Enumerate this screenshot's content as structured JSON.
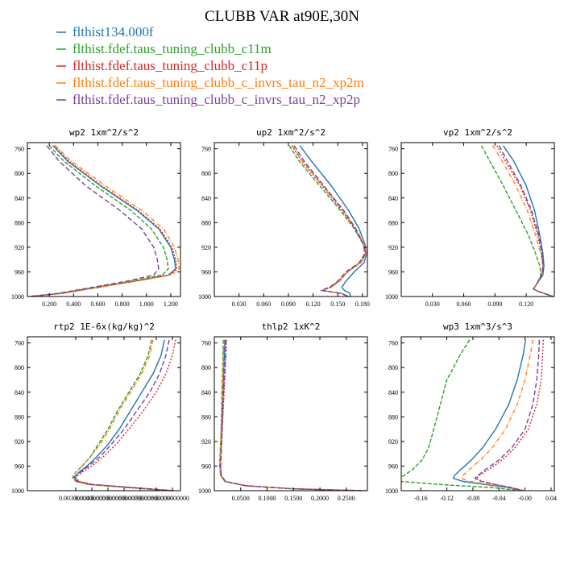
{
  "figure": {
    "title": "CLUBB VAR at90E,30N",
    "legend": [
      {
        "label": "flthist134.000f",
        "color": "#1f77b4"
      },
      {
        "label": "flthist.fdef.taus_tuning_clubb_c11m",
        "color": "#2ca02c"
      },
      {
        "label": "flthist.fdef.taus_tuning_clubb_c11p",
        "color": "#d62728"
      },
      {
        "label": "flthist.fdef.taus_tuning_clubb_c_invrs_tau_n2_xp2m",
        "color": "#ff7f0e"
      },
      {
        "label": "flthist.fdef.taus_tuning_clubb_c_invrs_tau_n2_xp2p",
        "color": "#7b3f9e"
      }
    ]
  },
  "chart_data": [
    {
      "type": "line",
      "title": "wp2  1xm^2/s^2",
      "xlim": [
        0.02,
        1.28
      ],
      "ylim": [
        1000,
        750
      ],
      "yticks": [
        760,
        800,
        840,
        880,
        920,
        960,
        1000
      ],
      "xticks": [
        0.2,
        0.4,
        0.6,
        0.8,
        1.0,
        1.2
      ],
      "xtick_labels": [
        "0.200",
        "0.400",
        "0.600",
        "0.800",
        "1.000",
        "1.200"
      ],
      "y": [
        755,
        780,
        820,
        860,
        890,
        920,
        940,
        955,
        965,
        975,
        985,
        995,
        1000
      ],
      "series": [
        {
          "name": "flthist134.000f",
          "color": "#1f77b4",
          "dash": "",
          "values": [
            0.23,
            0.35,
            0.62,
            0.92,
            1.1,
            1.2,
            1.23,
            1.24,
            1.18,
            0.9,
            0.6,
            0.3,
            0.04
          ]
        },
        {
          "name": "flthist.fdef.taus_tuning_clubb_c11m",
          "color": "#2ca02c",
          "dash": "5,2",
          "values": [
            0.2,
            0.32,
            0.58,
            0.87,
            1.04,
            1.14,
            1.17,
            1.18,
            1.13,
            0.88,
            0.58,
            0.28,
            0.04
          ]
        },
        {
          "name": "flthist.fdef.taus_tuning_clubb_c11p",
          "color": "#d62728",
          "dash": "2,2",
          "values": [
            0.24,
            0.36,
            0.63,
            0.93,
            1.11,
            1.21,
            1.24,
            1.25,
            1.19,
            0.91,
            0.61,
            0.3,
            0.04
          ]
        },
        {
          "name": "flthist.fdef.taus_tuning_clubb_c_invrs_tau_n2_xp2m",
          "color": "#ff7f0e",
          "dash": "5,2,1,2",
          "values": [
            0.25,
            0.38,
            0.66,
            0.96,
            1.14,
            1.23,
            1.26,
            1.27,
            1.2,
            0.92,
            0.61,
            0.3,
            0.04
          ]
        },
        {
          "name": "flthist.fdef.taus_tuning_clubb_c_invrs_tau_n2_xp2p",
          "color": "#7b3f9e",
          "dash": "6,3",
          "values": [
            0.18,
            0.28,
            0.5,
            0.78,
            0.96,
            1.06,
            1.09,
            1.1,
            1.06,
            0.84,
            0.56,
            0.27,
            0.04
          ]
        }
      ]
    },
    {
      "type": "line",
      "title": "up2  1xm^2/s^2",
      "xlim": [
        0.0,
        0.186
      ],
      "ylim": [
        1000,
        750
      ],
      "yticks": [
        760,
        800,
        840,
        880,
        920,
        960,
        1000
      ],
      "xticks": [
        0.03,
        0.06,
        0.09,
        0.12,
        0.15,
        0.18
      ],
      "xtick_labels": [
        "0.030",
        "0.060",
        "0.090",
        "0.120",
        "0.150",
        "0.180"
      ],
      "y": [
        755,
        780,
        820,
        860,
        890,
        915,
        930,
        945,
        960,
        975,
        985,
        990,
        995,
        1000
      ],
      "series": [
        {
          "name": "flthist134.000f",
          "color": "#1f77b4",
          "dash": "",
          "values": [
            0.104,
            0.118,
            0.142,
            0.163,
            0.176,
            0.183,
            0.185,
            0.182,
            0.17,
            0.16,
            0.155,
            0.158,
            0.165,
            0.165
          ]
        },
        {
          "name": "flthist.fdef.taus_tuning_clubb_c11m",
          "color": "#2ca02c",
          "dash": "5,2",
          "values": [
            0.091,
            0.103,
            0.128,
            0.153,
            0.17,
            0.181,
            0.184,
            0.178,
            0.162,
            0.152,
            0.142,
            0.131,
            0.155,
            0.163
          ]
        },
        {
          "name": "flthist.fdef.taus_tuning_clubb_c11p",
          "color": "#d62728",
          "dash": "2,2",
          "values": [
            0.094,
            0.106,
            0.131,
            0.155,
            0.171,
            0.181,
            0.184,
            0.177,
            0.161,
            0.151,
            0.141,
            0.13,
            0.154,
            0.163
          ]
        },
        {
          "name": "flthist.fdef.taus_tuning_clubb_c_invrs_tau_n2_xp2m",
          "color": "#ff7f0e",
          "dash": "5,2,1,2",
          "values": [
            0.095,
            0.107,
            0.132,
            0.156,
            0.172,
            0.182,
            0.185,
            0.178,
            0.162,
            0.152,
            0.142,
            0.131,
            0.155,
            0.163
          ]
        },
        {
          "name": "flthist.fdef.taus_tuning_clubb_c_invrs_tau_n2_xp2p",
          "color": "#7b3f9e",
          "dash": "6,3",
          "values": [
            0.097,
            0.109,
            0.133,
            0.157,
            0.172,
            0.181,
            0.183,
            0.176,
            0.16,
            0.15,
            0.14,
            0.13,
            0.154,
            0.163
          ]
        }
      ]
    },
    {
      "type": "line",
      "title": "vp2  1xm^2/s^2",
      "xlim": [
        0.0,
        0.147
      ],
      "ylim": [
        1000,
        750
      ],
      "yticks": [
        760,
        800,
        840,
        880,
        920,
        960,
        1000
      ],
      "xticks": [
        0.03,
        0.06,
        0.09,
        0.12
      ],
      "xtick_labels": [
        "0.030",
        "0.060",
        "0.090",
        "0.120"
      ],
      "y": [
        755,
        780,
        820,
        860,
        900,
        930,
        950,
        965,
        980,
        988,
        992,
        1000
      ],
      "series": [
        {
          "name": "flthist134.000f",
          "color": "#1f77b4",
          "dash": "",
          "values": [
            0.098,
            0.108,
            0.12,
            0.128,
            0.133,
            0.136,
            0.137,
            0.136,
            0.13,
            0.127,
            0.132,
            0.146
          ]
        },
        {
          "name": "flthist.fdef.taus_tuning_clubb_c11m",
          "color": "#2ca02c",
          "dash": "5,2",
          "values": [
            0.077,
            0.085,
            0.098,
            0.11,
            0.122,
            0.129,
            0.133,
            0.134,
            0.13,
            0.127,
            0.132,
            0.146
          ]
        },
        {
          "name": "flthist.fdef.taus_tuning_clubb_c11p",
          "color": "#d62728",
          "dash": "2,2",
          "values": [
            0.092,
            0.1,
            0.114,
            0.124,
            0.131,
            0.135,
            0.136,
            0.135,
            0.13,
            0.127,
            0.132,
            0.146
          ]
        },
        {
          "name": "flthist.fdef.taus_tuning_clubb_c_invrs_tau_n2_xp2m",
          "color": "#ff7f0e",
          "dash": "5,2,1,2",
          "values": [
            0.088,
            0.097,
            0.11,
            0.121,
            0.129,
            0.134,
            0.136,
            0.135,
            0.13,
            0.127,
            0.132,
            0.146
          ]
        },
        {
          "name": "flthist.fdef.taus_tuning_clubb_c_invrs_tau_n2_xp2p",
          "color": "#7b3f9e",
          "dash": "6,3",
          "values": [
            0.094,
            0.102,
            0.115,
            0.125,
            0.132,
            0.135,
            0.136,
            0.135,
            0.13,
            0.127,
            0.132,
            0.146
          ]
        }
      ]
    },
    {
      "type": "line",
      "title": "rtp2  1E-6x(kg/kg)^2",
      "xlim": [
        0.0,
        0.0095
      ],
      "ylim": [
        1000,
        750
      ],
      "yticks": [
        760,
        800,
        840,
        880,
        920,
        960,
        1000
      ],
      "xticks": [
        0.003,
        0.004,
        0.005,
        0.006,
        0.007,
        0.008,
        0.009
      ],
      "xtick_labels": [
        "0.003000000",
        "0.004000000",
        "0.005000000",
        "0.006000000",
        "0.007000000",
        "0.008000000",
        "0.009000000"
      ],
      "y": [
        755,
        780,
        810,
        840,
        870,
        900,
        925,
        945,
        960,
        970,
        978,
        985,
        990,
        995,
        1000
      ],
      "series": [
        {
          "name": "flthist134.000f",
          "color": "#1f77b4",
          "dash": "",
          "values": [
            0.0085,
            0.0083,
            0.0078,
            0.0071,
            0.0064,
            0.0057,
            0.005,
            0.0043,
            0.0037,
            0.0032,
            0.0029,
            0.0031,
            0.004,
            0.0065,
            0.009
          ]
        },
        {
          "name": "flthist.fdef.taus_tuning_clubb_c11m",
          "color": "#2ca02c",
          "dash": "5,2",
          "values": [
            0.0077,
            0.0075,
            0.007,
            0.0063,
            0.0056,
            0.005,
            0.0044,
            0.0039,
            0.0034,
            0.003,
            0.0028,
            0.003,
            0.0038,
            0.0063,
            0.0088
          ]
        },
        {
          "name": "flthist.fdef.taus_tuning_clubb_c11p",
          "color": "#d62728",
          "dash": "2,2",
          "values": [
            0.0092,
            0.009,
            0.0086,
            0.008,
            0.0072,
            0.0063,
            0.0055,
            0.0047,
            0.004,
            0.0034,
            0.003,
            0.0032,
            0.0041,
            0.0066,
            0.0091
          ]
        },
        {
          "name": "flthist.fdef.taus_tuning_clubb_c_invrs_tau_n2_xp2m",
          "color": "#ff7f0e",
          "dash": "5,2,1,2",
          "values": [
            0.0078,
            0.0076,
            0.0071,
            0.0064,
            0.0057,
            0.0051,
            0.0045,
            0.0039,
            0.0034,
            0.003,
            0.0028,
            0.003,
            0.0038,
            0.0063,
            0.0088
          ]
        },
        {
          "name": "flthist.fdef.taus_tuning_clubb_c_invrs_tau_n2_xp2p",
          "color": "#7b3f9e",
          "dash": "6,3",
          "values": [
            0.0088,
            0.0086,
            0.0082,
            0.0076,
            0.0068,
            0.006,
            0.0052,
            0.0045,
            0.0038,
            0.0033,
            0.0029,
            0.0031,
            0.004,
            0.0065,
            0.009
          ]
        }
      ]
    },
    {
      "type": "line",
      "title": "thlp2  1xK^2",
      "xlim": [
        0.0,
        0.29
      ],
      "ylim": [
        1000,
        750
      ],
      "yticks": [
        760,
        800,
        840,
        880,
        920,
        960,
        1000
      ],
      "xticks": [
        0.05,
        0.1,
        0.15,
        0.2,
        0.25
      ],
      "xtick_labels": [
        "0.0500",
        "0.1000",
        "0.1500",
        "0.2000",
        "0.2500"
      ],
      "y": [
        755,
        800,
        850,
        900,
        940,
        960,
        975,
        985,
        992,
        997,
        1000
      ],
      "series": [
        {
          "name": "flthist134.000f",
          "color": "#1f77b4",
          "dash": "",
          "values": [
            0.02,
            0.018,
            0.016,
            0.014,
            0.012,
            0.011,
            0.012,
            0.02,
            0.06,
            0.15,
            0.28
          ]
        },
        {
          "name": "flthist.fdef.taus_tuning_clubb_c11m",
          "color": "#2ca02c",
          "dash": "5,2",
          "values": [
            0.017,
            0.016,
            0.014,
            0.013,
            0.011,
            0.01,
            0.012,
            0.02,
            0.06,
            0.15,
            0.285
          ]
        },
        {
          "name": "flthist.fdef.taus_tuning_clubb_c11p",
          "color": "#d62728",
          "dash": "2,2",
          "values": [
            0.023,
            0.021,
            0.018,
            0.015,
            0.013,
            0.012,
            0.013,
            0.021,
            0.061,
            0.15,
            0.28
          ]
        },
        {
          "name": "flthist.fdef.taus_tuning_clubb_c_invrs_tau_n2_xp2m",
          "color": "#ff7f0e",
          "dash": "5,2,1,2",
          "values": [
            0.018,
            0.017,
            0.015,
            0.013,
            0.012,
            0.011,
            0.012,
            0.02,
            0.06,
            0.15,
            0.288
          ]
        },
        {
          "name": "flthist.fdef.taus_tuning_clubb_c_invrs_tau_n2_xp2p",
          "color": "#7b3f9e",
          "dash": "6,3",
          "values": [
            0.022,
            0.02,
            0.017,
            0.015,
            0.013,
            0.012,
            0.013,
            0.021,
            0.06,
            0.15,
            0.28
          ]
        }
      ]
    },
    {
      "type": "line",
      "title": "wp3  1xm^3/s^3",
      "xlim": [
        -0.19,
        0.045
      ],
      "ylim": [
        1000,
        750
      ],
      "yticks": [
        760,
        800,
        840,
        880,
        920,
        960,
        1000
      ],
      "xticks": [
        -0.16,
        -0.12,
        -0.08,
        -0.04,
        0.0,
        0.04
      ],
      "xtick_labels": [
        "-0.16",
        "-0.12",
        "-0.08",
        "-0.04",
        "-0.00",
        "0.04"
      ],
      "y": [
        755,
        780,
        820,
        860,
        900,
        930,
        950,
        965,
        975,
        980,
        985,
        990,
        995,
        1000
      ],
      "series": [
        {
          "name": "flthist134.000f",
          "color": "#1f77b4",
          "dash": "",
          "values": [
            0.001,
            -0.003,
            -0.012,
            -0.025,
            -0.045,
            -0.065,
            -0.082,
            -0.098,
            -0.108,
            -0.11,
            -0.095,
            -0.06,
            -0.025,
            -0.002
          ]
        },
        {
          "name": "flthist.fdef.taus_tuning_clubb_c11m",
          "color": "#2ca02c",
          "dash": "5,2",
          "values": [
            -0.085,
            -0.1,
            -0.12,
            -0.13,
            -0.14,
            -0.148,
            -0.158,
            -0.172,
            -0.185,
            -0.195,
            -0.19,
            -0.13,
            -0.05,
            -0.005
          ]
        },
        {
          "name": "flthist.fdef.taus_tuning_clubb_c11p",
          "color": "#d62728",
          "dash": "2,2",
          "values": [
            0.028,
            0.027,
            0.025,
            0.018,
            0.005,
            -0.015,
            -0.035,
            -0.055,
            -0.07,
            -0.075,
            -0.065,
            -0.045,
            -0.02,
            -0.002
          ]
        },
        {
          "name": "flthist.fdef.taus_tuning_clubb_c_invrs_tau_n2_xp2m",
          "color": "#ff7f0e",
          "dash": "5,2,1,2",
          "values": [
            0.012,
            0.008,
            0.0,
            -0.012,
            -0.03,
            -0.05,
            -0.068,
            -0.085,
            -0.095,
            -0.098,
            -0.085,
            -0.055,
            -0.022,
            -0.002
          ]
        },
        {
          "name": "flthist.fdef.taus_tuning_clubb_c_invrs_tau_n2_xp2p",
          "color": "#7b3f9e",
          "dash": "6,3",
          "values": [
            0.022,
            0.021,
            0.018,
            0.012,
            0.0,
            -0.02,
            -0.04,
            -0.06,
            -0.072,
            -0.077,
            -0.067,
            -0.046,
            -0.021,
            -0.002
          ]
        }
      ]
    }
  ]
}
